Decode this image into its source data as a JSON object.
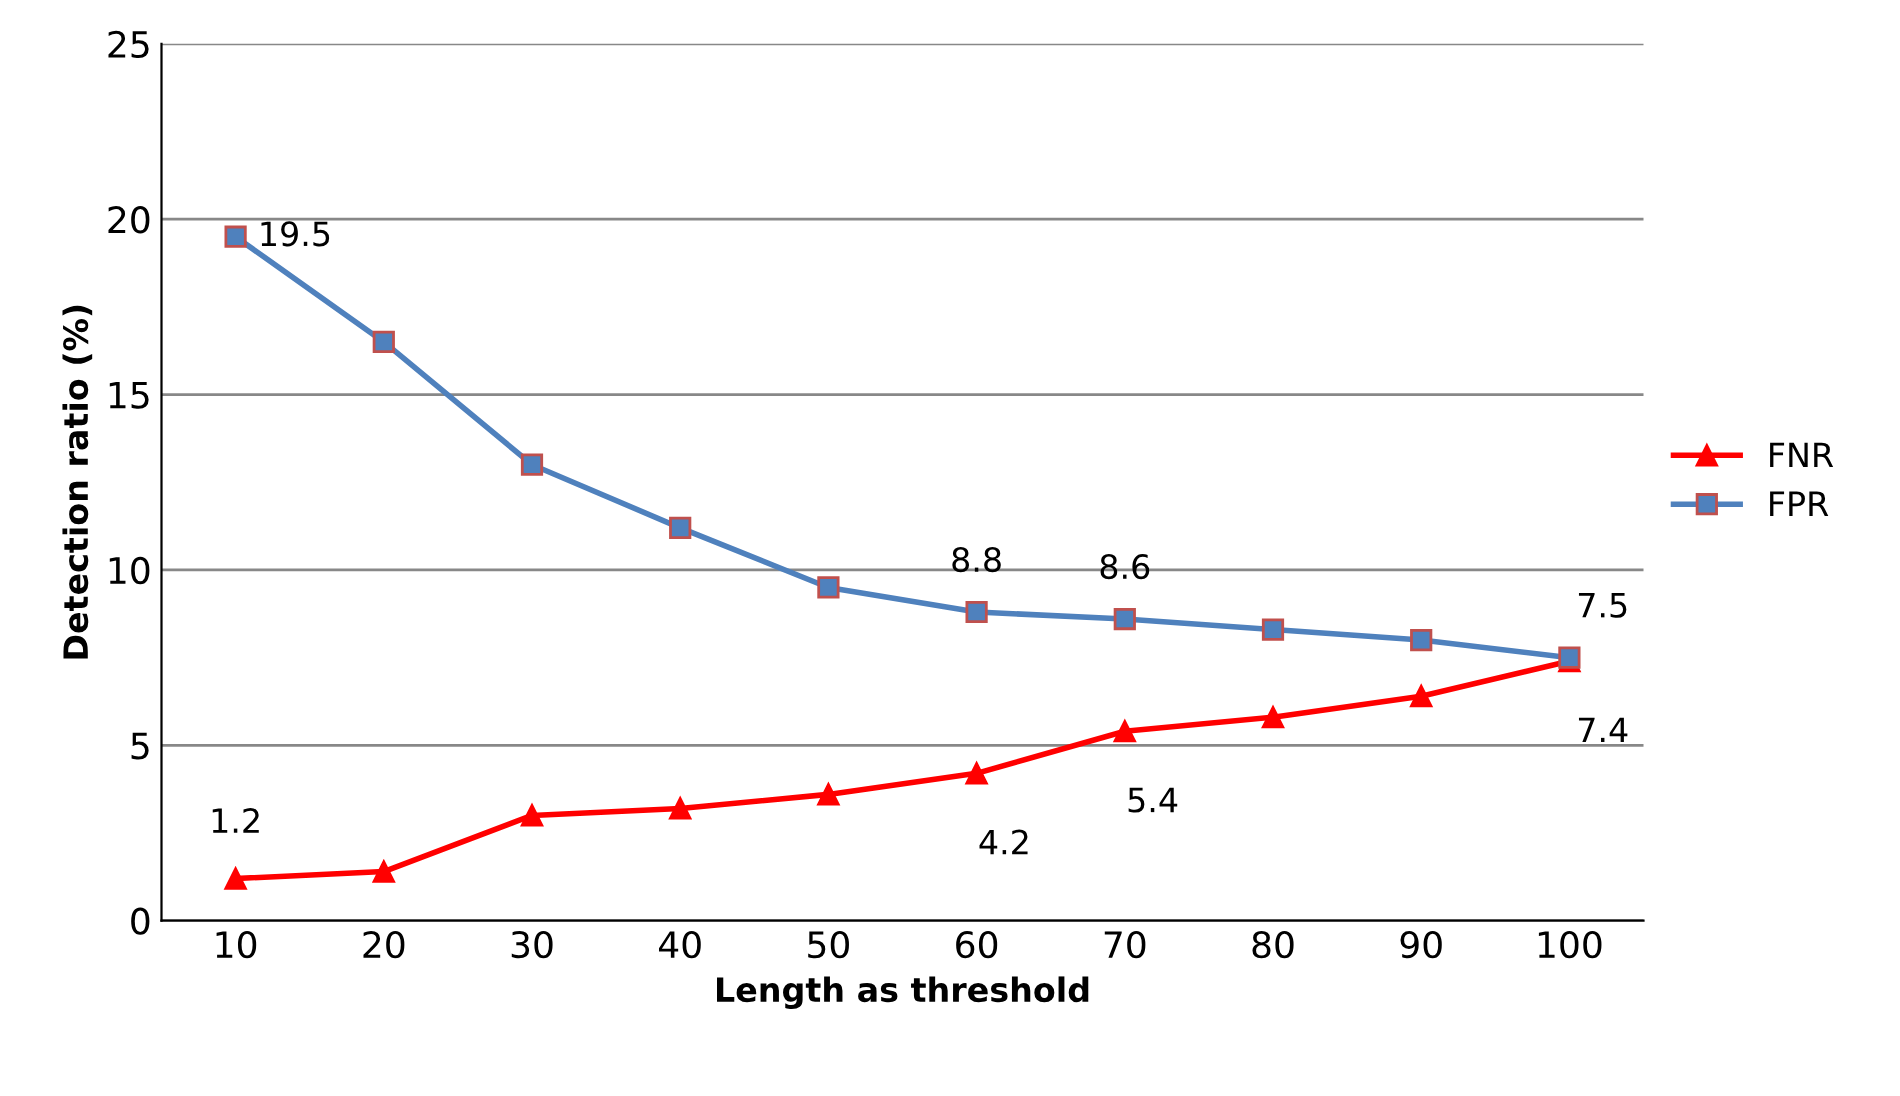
{
  "chart_data": {
    "type": "line",
    "xlabel": "Length as threshold",
    "ylabel": "Detection ratio (%)",
    "categories": [
      "10",
      "20",
      "30",
      "40",
      "50",
      "60",
      "70",
      "80",
      "90",
      "100"
    ],
    "series": [
      {
        "name": "FNR",
        "color": "#ff0000",
        "marker": "triangle",
        "values": [
          1.2,
          1.4,
          3.0,
          3.2,
          3.6,
          4.2,
          5.4,
          5.8,
          6.4,
          7.4
        ],
        "value_labels": [
          "1.2",
          null,
          null,
          null,
          null,
          "4.2",
          "5.4",
          null,
          null,
          "7.4"
        ]
      },
      {
        "name": "FPR",
        "color": "#4f81bd",
        "marker": "square",
        "values": [
          19.5,
          16.5,
          13.0,
          11.2,
          9.5,
          8.8,
          8.6,
          8.3,
          8.0,
          7.5
        ],
        "value_labels": [
          "19.5",
          null,
          null,
          null,
          null,
          "8.8",
          "8.6",
          null,
          null,
          "7.5"
        ]
      }
    ],
    "ylim": [
      0,
      25
    ],
    "yticks": [
      0,
      5,
      10,
      15,
      20,
      25
    ],
    "grid": "y",
    "legend": "right",
    "line_style": "solid"
  }
}
